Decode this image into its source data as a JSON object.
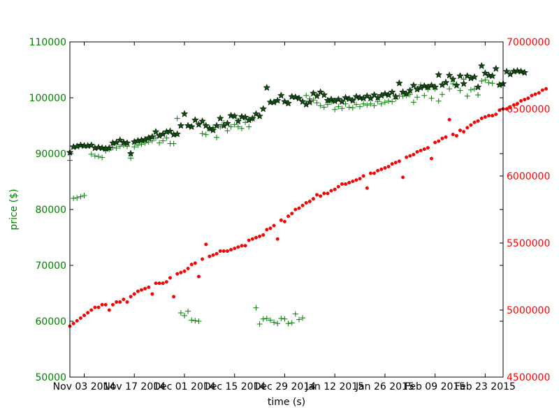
{
  "chart_data": {
    "type": "scatter",
    "xlabel": "time (s)",
    "ylabel_left": "price ($)",
    "ylabel_right": "",
    "x_range": [
      "2014-10-30",
      "2015-02-28"
    ],
    "ylim_left": [
      50000,
      110000
    ],
    "ylim_right": [
      4500000,
      7000000
    ],
    "x_ticks": [
      {
        "date": "2014-11-03",
        "label": "Nov 03 2014"
      },
      {
        "date": "2014-11-17",
        "label": "Nov 17 2014"
      },
      {
        "date": "2014-12-01",
        "label": "Dec 01 2014"
      },
      {
        "date": "2014-12-15",
        "label": "Dec 15 2014"
      },
      {
        "date": "2014-12-29",
        "label": "Dec 29 2014"
      },
      {
        "date": "2015-01-12",
        "label": "Jan 12 2015"
      },
      {
        "date": "2015-01-26",
        "label": "Jan 26 2015"
      },
      {
        "date": "2015-02-09",
        "label": "Feb 09 2015"
      },
      {
        "date": "2015-02-23",
        "label": "Feb 23 2015"
      }
    ],
    "y_ticks_left": [
      "50000",
      "60000",
      "70000",
      "80000",
      "90000",
      "100000",
      "110000"
    ],
    "y_ticks_right": [
      "4500000",
      "5000000",
      "5500000",
      "6000000",
      "6500000",
      "7000000"
    ],
    "colors": {
      "left_axis": "#008000",
      "right_axis": "#ff0000",
      "star_fill": "#0d4d0d",
      "plus": "#008000",
      "dot": "#ff0000"
    },
    "series": [
      {
        "marker": "star",
        "axis": "left",
        "start": "2014-10-30",
        "step_days": 1,
        "values": [
          90200,
          91200,
          91300,
          91500,
          91400,
          91400,
          91500,
          91000,
          91100,
          91000,
          90900,
          91000,
          91900,
          92000,
          92400,
          92000,
          91900,
          90000,
          92100,
          92300,
          92400,
          92500,
          92800,
          93000,
          93900,
          93200,
          93500,
          93900,
          94000,
          93400,
          93500,
          95000,
          97100,
          95000,
          94800,
          96000,
          95200,
          95800,
          95000,
          94500,
          94200,
          95000,
          96300,
          95000,
          95400,
          96800,
          96700,
          95800,
          96600,
          96500,
          96000,
          96300,
          97100,
          96700,
          98000,
          101800,
          99200,
          99200,
          99500,
          100400,
          99300,
          99000,
          100200,
          100100,
          99900,
          99300,
          98800,
          99200,
          100800,
          100300,
          101000,
          100500,
          99500,
          99700,
          99400,
          99700,
          99300,
          100000,
          99800,
          99500,
          100200,
          100000,
          99900,
          100300,
          99900,
          100500,
          100000,
          100400,
          100700,
          100500,
          101000,
          100200,
          102600,
          101000,
          100700,
          101300,
          102200,
          101500,
          101800,
          102100,
          101900,
          102200,
          101900,
          104100,
          102300,
          102700,
          104000,
          103300,
          102200,
          103900,
          102500,
          103900,
          103500,
          103700,
          101900,
          105700,
          104400,
          104000,
          103900,
          105200,
          102300,
          102500,
          104700,
          104200,
          104700,
          104800,
          104700,
          104500
        ]
      },
      {
        "marker": "plus",
        "axis": "left",
        "start": "2014-10-30",
        "step_days": 1,
        "values": [
          88800,
          82000,
          82100,
          82300,
          82500,
          null,
          89900,
          89600,
          89500,
          89300,
          90500,
          90800,
          91100,
          91000,
          91300,
          91500,
          91300,
          89200,
          91200,
          91500,
          91700,
          91900,
          92100,
          92300,
          92800,
          91900,
          92300,
          92800,
          91800,
          91800,
          96300,
          61500,
          61000,
          61800,
          60200,
          60100,
          60000,
          93600,
          93400,
          94400,
          94700,
          92900,
          94800,
          95500,
          94100,
          94800,
          95200,
          94800,
          94500,
          95600,
          94800,
          96200,
          62400,
          59500,
          60400,
          60500,
          60200,
          59800,
          59600,
          60500,
          60400,
          59600,
          59700,
          61300,
          60300,
          60600,
          100400,
          99800,
          99600,
          99100,
          98600,
          98300,
          98800,
          99200,
          97900,
          98400,
          98100,
          98900,
          98300,
          98200,
          98800,
          98400,
          98900,
          98700,
          98900,
          98600,
          99300,
          98900,
          99200,
          99400,
          99300,
          99800,
          100300,
          100300,
          100400,
          100600,
          99200,
          100100,
          102300,
          100400,
          101500,
          99900,
          101600,
          99400,
          100600,
          102900,
          101600,
          102500,
          102400,
          101300,
          103300,
          100300,
          101400,
          101600,
          100500,
          103000,
          103200,
          102700,
          102600
        ]
      },
      {
        "marker": "dot",
        "axis": "right",
        "start": "2014-10-30",
        "step_days": 1,
        "values": [
          4880000,
          4900000,
          4920000,
          4940000,
          4960000,
          4980000,
          5000000,
          5020000,
          5020000,
          5040000,
          5040000,
          5000000,
          5040000,
          5060000,
          5060000,
          5080000,
          5060000,
          5100000,
          5120000,
          5140000,
          5150000,
          5160000,
          5170000,
          5120000,
          5200000,
          5200000,
          5200000,
          5210000,
          5240000,
          5100000,
          5270000,
          5280000,
          5290000,
          5310000,
          5340000,
          5350000,
          5250000,
          5380000,
          5490000,
          5400000,
          5410000,
          5420000,
          5440000,
          5440000,
          5440000,
          5450000,
          5460000,
          5470000,
          5480000,
          5480000,
          5520000,
          5530000,
          5540000,
          5550000,
          5560000,
          5600000,
          5610000,
          5630000,
          5530000,
          5670000,
          5660000,
          5700000,
          5720000,
          5750000,
          5760000,
          5780000,
          5800000,
          5810000,
          5830000,
          5860000,
          5850000,
          5870000,
          5870000,
          5890000,
          5900000,
          5920000,
          5940000,
          5940000,
          5950000,
          5960000,
          5970000,
          5980000,
          6000000,
          5910000,
          6020000,
          6020000,
          6040000,
          6050000,
          6060000,
          6070000,
          6090000,
          6100000,
          6110000,
          5990000,
          6140000,
          6150000,
          6160000,
          6180000,
          6190000,
          6200000,
          6210000,
          6130000,
          6250000,
          6260000,
          6280000,
          6290000,
          6420000,
          6310000,
          6300000,
          6340000,
          6330000,
          6360000,
          6380000,
          6400000,
          6410000,
          6430000,
          6440000,
          6450000,
          6450000,
          6460000,
          6490000,
          6500000,
          6500000,
          6510000,
          6530000,
          6540000,
          6560000,
          6570000,
          6580000,
          6600000,
          6610000,
          6620000,
          6640000,
          6650000
        ]
      }
    ]
  }
}
